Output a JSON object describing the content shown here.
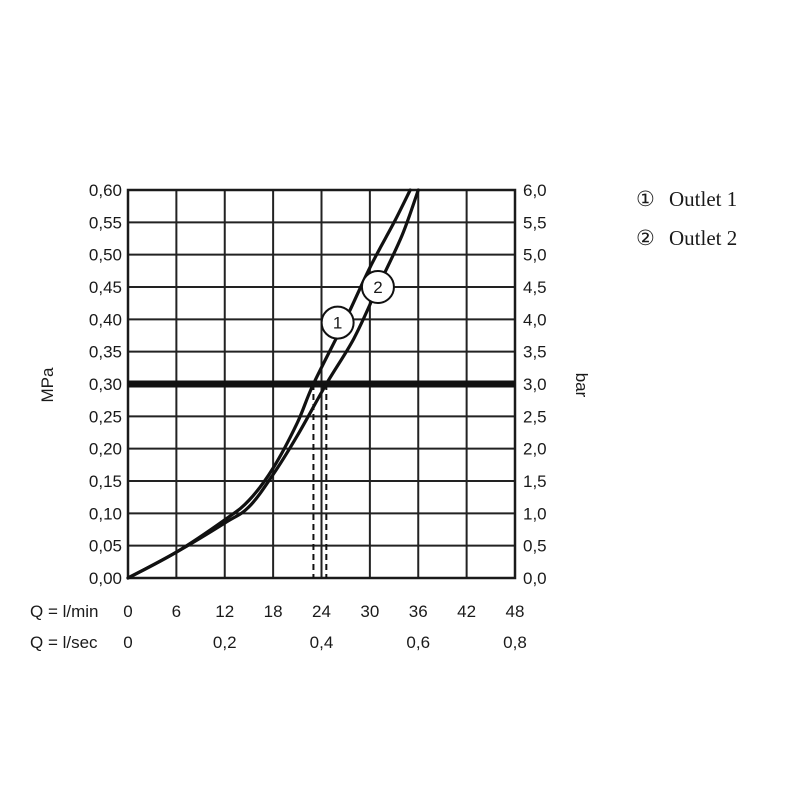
{
  "chart_data": {
    "type": "line",
    "y_left": {
      "unit": "MPa",
      "range": [
        0,
        0.6
      ],
      "ticks": [
        "0,00",
        "0,05",
        "0,10",
        "0,15",
        "0,20",
        "0,25",
        "0,30",
        "0,35",
        "0,40",
        "0,45",
        "0,50",
        "0,55",
        "0,60"
      ]
    },
    "y_right": {
      "unit": "bar",
      "range": [
        0,
        6
      ],
      "ticks": [
        "0,0",
        "0,5",
        "1,0",
        "1,5",
        "2,0",
        "2,5",
        "3,0",
        "3,5",
        "4,0",
        "4,5",
        "5,0",
        "5,5",
        "6,0"
      ]
    },
    "x_primary": {
      "label": "Q = l/min",
      "range": [
        0,
        48
      ],
      "ticks": [
        {
          "value": 0,
          "label": "0"
        },
        {
          "value": 6,
          "label": "6"
        },
        {
          "value": 12,
          "label": "12"
        },
        {
          "value": 18,
          "label": "18"
        },
        {
          "value": 24,
          "label": "24"
        },
        {
          "value": 30,
          "label": "30"
        },
        {
          "value": 36,
          "label": "36"
        },
        {
          "value": 42,
          "label": "42"
        },
        {
          "value": 48,
          "label": "48"
        }
      ]
    },
    "x_secondary": {
      "label": "Q = l/sec",
      "ticks": [
        {
          "value": 0,
          "label": "0"
        },
        {
          "value": 0.2,
          "label": "0,2"
        },
        {
          "value": 0.4,
          "label": "0,4"
        },
        {
          "value": 0.6,
          "label": "0,6"
        },
        {
          "value": 0.8,
          "label": "0,8"
        }
      ]
    },
    "grid": true,
    "reference_line": {
      "y": 0.3
    },
    "drop_lines_x": [
      23.0,
      24.6
    ],
    "series": [
      {
        "name": "Outlet 1",
        "marker": "1",
        "marker_at": {
          "x": 26.0,
          "y": 0.395
        },
        "points": [
          [
            0,
            0
          ],
          [
            6,
            0.04
          ],
          [
            12,
            0.09
          ],
          [
            15,
            0.12
          ],
          [
            18,
            0.17
          ],
          [
            21,
            0.24
          ],
          [
            23,
            0.3
          ],
          [
            27,
            0.4
          ],
          [
            30,
            0.48
          ],
          [
            33,
            0.55
          ],
          [
            35,
            0.6
          ]
        ]
      },
      {
        "name": "Outlet 2",
        "marker": "2",
        "marker_at": {
          "x": 31.0,
          "y": 0.45
        },
        "points": [
          [
            0,
            0
          ],
          [
            6,
            0.04
          ],
          [
            12,
            0.085
          ],
          [
            15,
            0.11
          ],
          [
            18,
            0.16
          ],
          [
            21,
            0.22
          ],
          [
            24.6,
            0.3
          ],
          [
            28,
            0.37
          ],
          [
            31,
            0.45
          ],
          [
            34,
            0.53
          ],
          [
            36,
            0.6
          ]
        ]
      }
    ],
    "legend": {
      "position": "right",
      "entries": [
        {
          "symbol": "①",
          "label": "Outlet 1"
        },
        {
          "symbol": "②",
          "label": "Outlet 2"
        }
      ]
    }
  }
}
